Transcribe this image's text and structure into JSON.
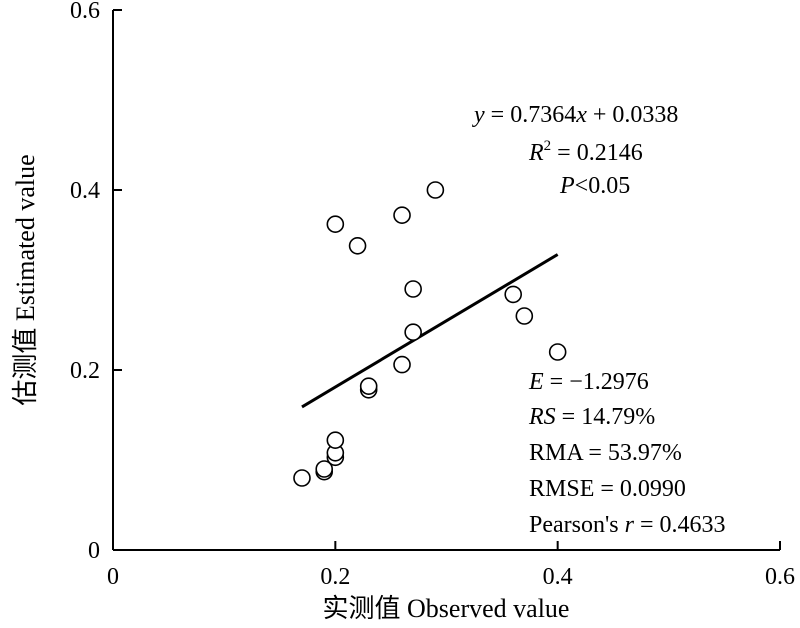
{
  "chart_data": {
    "type": "scatter",
    "xlabel": "实测值 Observed value",
    "ylabel": "估测值 Estimated value",
    "xlim": [
      0,
      0.6
    ],
    "ylim": [
      0,
      0.6
    ],
    "x_ticks": [
      "0",
      "0.2",
      "0.4",
      "0.6"
    ],
    "y_ticks": [
      "0",
      "0.2",
      "0.4",
      "0.6"
    ],
    "grid": false,
    "points": [
      {
        "x": 0.17,
        "y": 0.08
      },
      {
        "x": 0.19,
        "y": 0.087
      },
      {
        "x": 0.19,
        "y": 0.09
      },
      {
        "x": 0.2,
        "y": 0.103
      },
      {
        "x": 0.2,
        "y": 0.108
      },
      {
        "x": 0.2,
        "y": 0.122
      },
      {
        "x": 0.2,
        "y": 0.362
      },
      {
        "x": 0.22,
        "y": 0.338
      },
      {
        "x": 0.23,
        "y": 0.178
      },
      {
        "x": 0.23,
        "y": 0.182
      },
      {
        "x": 0.26,
        "y": 0.206
      },
      {
        "x": 0.26,
        "y": 0.372
      },
      {
        "x": 0.27,
        "y": 0.242
      },
      {
        "x": 0.27,
        "y": 0.29
      },
      {
        "x": 0.29,
        "y": 0.4
      },
      {
        "x": 0.36,
        "y": 0.284
      },
      {
        "x": 0.37,
        "y": 0.26
      },
      {
        "x": 0.4,
        "y": 0.22
      }
    ],
    "fit_line": {
      "slope": 0.7364,
      "intercept": 0.0338,
      "x_range": [
        0.17,
        0.4
      ]
    },
    "annotations": {
      "equation": {
        "pre": "y",
        "mid": " = 0.7364",
        "var": "x",
        "post": " + 0.0338"
      },
      "r2": {
        "base": "R",
        "sup": "2",
        "rest": " = 0.2146"
      },
      "p": {
        "var": "P",
        "rest": "<0.05"
      },
      "e": {
        "var": "E",
        "rest": " = −1.2976"
      },
      "rs": {
        "var": "RS",
        "rest": " = 14.79%"
      },
      "rma": "RMA = 53.97%",
      "rmse": "RMSE = 0.0990",
      "pearson": {
        "pre": "Pearson's ",
        "var": "r",
        "rest": " = 0.4633"
      }
    }
  }
}
